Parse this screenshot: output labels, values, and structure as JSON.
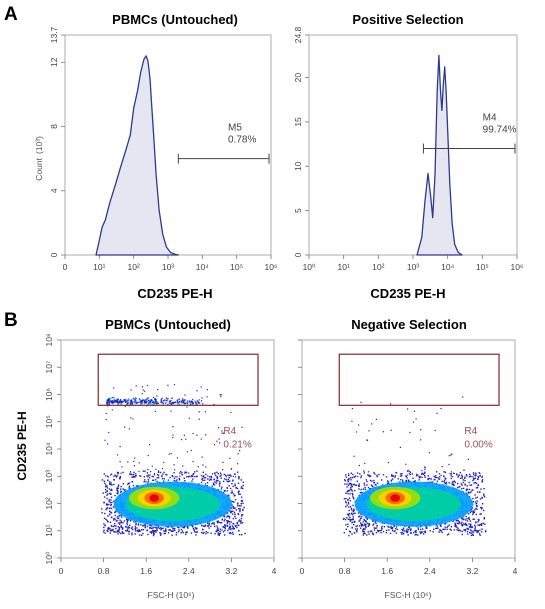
{
  "panels": {
    "a_letter": "A",
    "b_letter": "B"
  },
  "colors": {
    "histogram_line": "#2b3a8f",
    "histogram_fill": "#e6e6f2",
    "gate_box": "#8b3a3a",
    "gate_text": "#9b4f4f",
    "density_scale": [
      "#2020c0",
      "#00a0ff",
      "#00d0a0",
      "#a0e000",
      "#ffd000",
      "#ff6000",
      "#e00000"
    ]
  },
  "chart_data": [
    {
      "id": "A-left",
      "type": "area",
      "title": "PBMCs (Untouched)",
      "xlabel": "CD235 PE-H",
      "ylabel": "Count",
      "ylabel_unit": "(10³)",
      "x_scale": "log",
      "xlim": [
        1,
        1000000
      ],
      "x_ticks": [
        "0",
        "10¹",
        "10²",
        "10³",
        "10⁴",
        "10⁵",
        "10⁶"
      ],
      "ylim": [
        0,
        13.7
      ],
      "y_ticks": [
        "0",
        "4",
        "8",
        "12",
        "13.7"
      ],
      "y_tick_values": [
        0,
        4,
        8,
        12,
        13.7
      ],
      "curve": {
        "x": [
          8,
          10,
          12,
          15,
          20,
          30,
          40,
          60,
          80,
          100,
          130,
          160,
          200,
          230,
          260,
          300,
          330,
          380,
          450,
          550,
          700,
          900,
          1200,
          1600,
          2000
        ],
        "y": [
          0,
          0.9,
          1.5,
          2.2,
          3.2,
          4.5,
          5.3,
          6.5,
          7.6,
          8.9,
          10.3,
          11.4,
          12.2,
          12.4,
          12.1,
          11.0,
          9.5,
          7.5,
          5.0,
          2.8,
          1.3,
          0.5,
          0.15,
          0.05,
          0
        ]
      },
      "gate": {
        "name": "M5",
        "percent": "0.78%",
        "x_range": [
          2000,
          1000000
        ],
        "y_level": 6.0
      }
    },
    {
      "id": "A-right",
      "type": "area",
      "title": "Positive Selection",
      "xlabel": "CD235 PE-H",
      "ylabel": "",
      "x_scale": "log",
      "xlim": [
        1,
        1000000
      ],
      "x_ticks": [
        "10⁰",
        "10¹",
        "10²",
        "10³",
        "10⁴",
        "10⁵",
        "10⁶"
      ],
      "ylim": [
        0,
        24.8
      ],
      "y_ticks": [
        "0",
        "5",
        "10",
        "15",
        "20",
        "24.8"
      ],
      "y_tick_values": [
        0,
        5,
        10,
        15,
        20,
        24.8
      ],
      "curve": {
        "x": [
          1300,
          1800,
          2200,
          2700,
          3200,
          3700,
          4300,
          5000,
          5600,
          6200,
          6800,
          7500,
          8200,
          9000,
          10000,
          11500,
          13500,
          16000,
          20000,
          26000
        ],
        "y": [
          0,
          2,
          6,
          9.2,
          6.8,
          4.2,
          9,
          18.5,
          22.5,
          18.5,
          16.3,
          19.2,
          21.2,
          18.5,
          14,
          8,
          3.5,
          1.2,
          0.3,
          0
        ]
      },
      "gate": {
        "name": "M4",
        "percent": "99.74%",
        "x_range": [
          2000,
          1000000
        ],
        "y_level": 12.0
      }
    },
    {
      "id": "B-left",
      "type": "scatter",
      "title": "PBMCs (Untouched)",
      "xlabel": "FSC-H (10⁶)",
      "ylabel": "CD235 PE-H",
      "x_scale": "linear",
      "xlim": [
        0,
        4
      ],
      "x_ticks": [
        "0",
        "0.8",
        "1.6",
        "2.4",
        "3.2",
        "4"
      ],
      "x_tick_values": [
        0,
        0.8,
        1.6,
        2.4,
        3.2,
        4
      ],
      "y_scale": "log",
      "ylim": [
        1,
        100000000
      ],
      "y_ticks": [
        "10⁰",
        "10¹",
        "10²",
        "10³",
        "10⁴",
        "10⁵",
        "10⁶",
        "10⁷",
        "10⁸"
      ],
      "population": {
        "x_range": [
          0.8,
          3.4
        ],
        "center_x": 1.75,
        "log_y_center": 2.2
      },
      "gate": {
        "name": "R4",
        "percent": "0.21%",
        "x_range": [
          0.7,
          3.7
        ],
        "y_range": [
          400000,
          30000000
        ]
      }
    },
    {
      "id": "B-right",
      "type": "scatter",
      "title": "Negative Selection",
      "xlabel": "FSC-H (10⁶)",
      "ylabel": "",
      "x_scale": "linear",
      "xlim": [
        0,
        4
      ],
      "x_ticks": [
        "0",
        "0.8",
        "1.6",
        "2.4",
        "3.2",
        "4"
      ],
      "x_tick_values": [
        0,
        0.8,
        1.6,
        2.4,
        3.2,
        4
      ],
      "y_scale": "log",
      "ylim": [
        1,
        100000000
      ],
      "population": {
        "x_range": [
          0.8,
          3.4
        ],
        "center_x": 1.75,
        "log_y_center": 2.2
      },
      "gate": {
        "name": "R4",
        "percent": "0.00%",
        "x_range": [
          0.7,
          3.7
        ],
        "y_range": [
          400000,
          30000000
        ]
      }
    }
  ]
}
